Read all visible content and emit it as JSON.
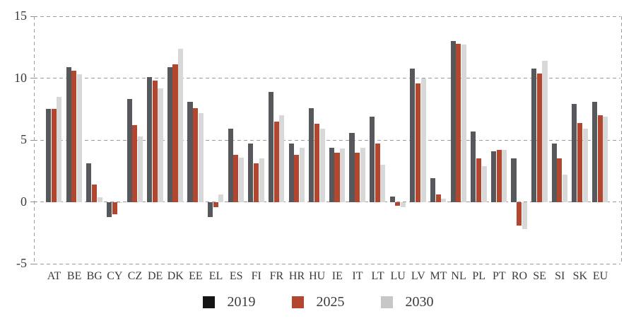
{
  "chart_data": {
    "type": "bar",
    "title": "",
    "xlabel": "",
    "ylabel": "",
    "ylim": [
      -5,
      15
    ],
    "yticks": [
      15,
      10,
      5,
      0,
      -5
    ],
    "grid": "horizontal dashed gridlines at each ytick, dashed left/right plot borders",
    "legend_position": "bottom-center",
    "categories": [
      "AT",
      "BE",
      "BG",
      "CY",
      "CZ",
      "DE",
      "DK",
      "EE",
      "EL",
      "ES",
      "FI",
      "FR",
      "HR",
      "HU",
      "IE",
      "IT",
      "LT",
      "LU",
      "LV",
      "MT",
      "NL",
      "PL",
      "PT",
      "RO",
      "SE",
      "SI",
      "SK",
      "EU"
    ],
    "series": [
      {
        "name": "2019",
        "color": "#56585b",
        "legend_color": "#151515",
        "values": [
          7.5,
          10.9,
          3.1,
          -1.2,
          8.3,
          10.1,
          10.9,
          8.1,
          -1.2,
          5.9,
          4.7,
          8.9,
          4.7,
          7.6,
          4.4,
          5.6,
          6.9,
          0.45,
          10.8,
          1.9,
          13.0,
          5.7,
          4.1,
          3.5,
          10.8,
          4.7,
          7.9,
          8.1
        ]
      },
      {
        "name": "2025",
        "color": "#b2462e",
        "legend_color": "#b2462e",
        "values": [
          7.5,
          10.6,
          1.4,
          -1.0,
          6.2,
          9.8,
          11.1,
          7.6,
          -0.4,
          3.8,
          3.1,
          6.5,
          3.8,
          6.3,
          4.0,
          4.0,
          4.7,
          -0.3,
          9.6,
          0.6,
          12.8,
          3.5,
          4.2,
          -1.9,
          10.4,
          3.5,
          6.4,
          7.0
        ]
      },
      {
        "name": "2030",
        "color": "#d8d8d8",
        "legend_color": "#c7c7c7",
        "values": [
          8.5,
          10.3,
          0.4,
          -0.1,
          5.3,
          9.2,
          12.4,
          7.2,
          0.6,
          3.6,
          3.5,
          7.0,
          4.4,
          5.9,
          4.3,
          4.4,
          3.0,
          -0.45,
          10.0,
          0.25,
          12.7,
          2.9,
          4.2,
          -2.2,
          11.4,
          2.2,
          5.9,
          6.9
        ]
      }
    ]
  },
  "colors": {
    "background": "#ffffff",
    "gridline": "#9c9c9c",
    "tickmark": "#8f8f8f",
    "text": "#3b3b3b"
  }
}
